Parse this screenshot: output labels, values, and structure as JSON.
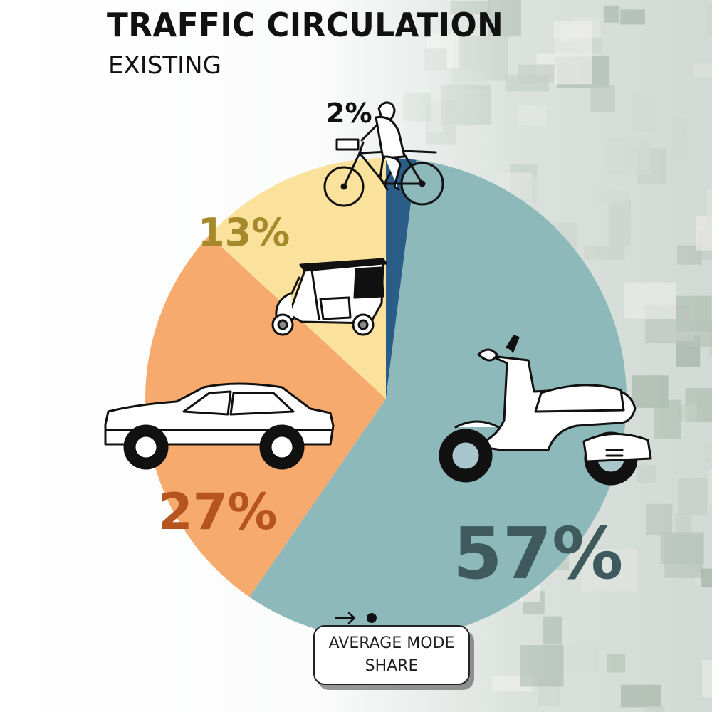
{
  "header": {
    "title": "TRAFFIC CIRCULATION",
    "subtitle": "EXISTING"
  },
  "legend": {
    "note": "AVERAGE MODE SHARE"
  },
  "chart_data": {
    "type": "pie",
    "title": "TRAFFIC CIRCULATION",
    "subtitle": "EXISTING",
    "slices": [
      {
        "category": "bicycle",
        "value": 2,
        "label": "2%",
        "color": "#2a5d87",
        "label_color": "#111111",
        "icon": "bicycle-icon"
      },
      {
        "category": "two-wheeler",
        "value": 57,
        "label": "57%",
        "color": "#8db9bb",
        "label_color": "#3f5a5c",
        "icon": "scooter-icon"
      },
      {
        "category": "car",
        "value": 27,
        "label": "27%",
        "color": "#f6aa6d",
        "label_color": "#b5541f",
        "icon": "car-icon"
      },
      {
        "category": "auto-rickshaw",
        "value": 13,
        "label": "13%",
        "color": "#fae29c",
        "label_color": "#a6892a",
        "icon": "auto-rickshaw-icon"
      }
    ],
    "start_angle_deg": 0,
    "direction": "clockwise",
    "legend": "none"
  }
}
